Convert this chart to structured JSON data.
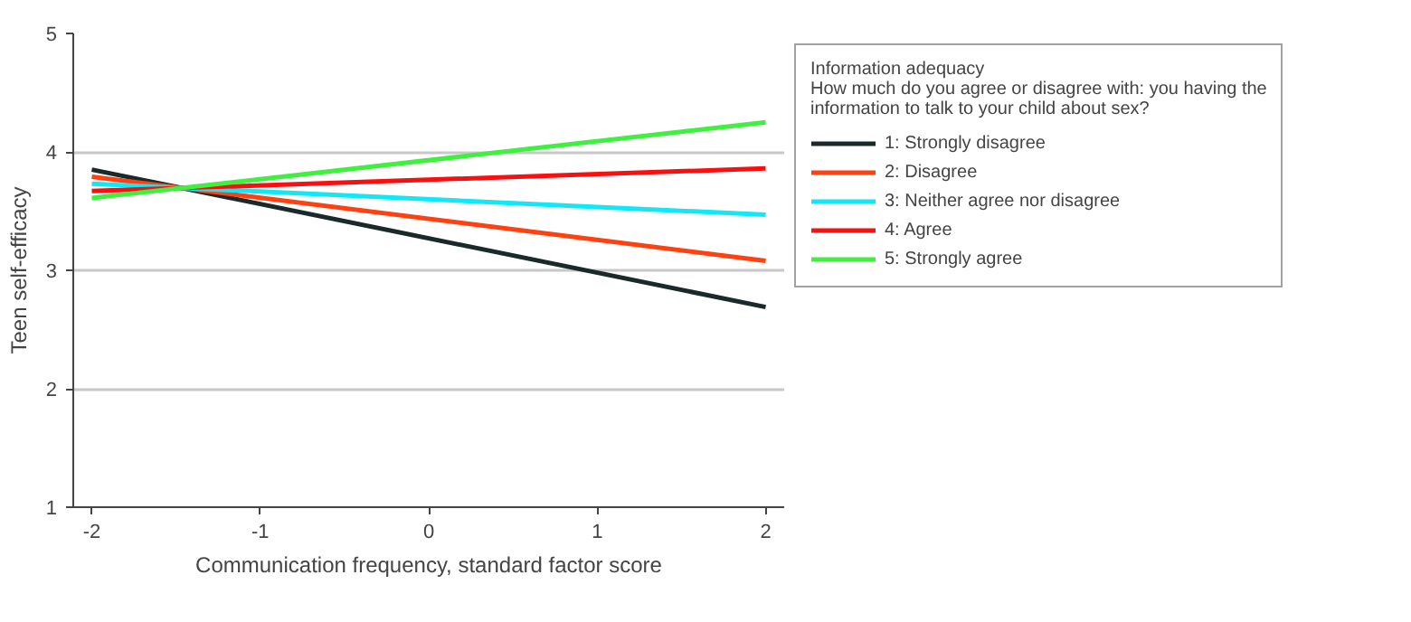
{
  "chart_data": {
    "type": "line",
    "xlabel": "Communication frequency, standard factor score",
    "ylabel": "Teen self-efficacy",
    "legend_title": "Information adequacy",
    "annotations": [
      "How much do you agree or disagree with: you having the information to talk to your child about sex?"
    ],
    "x": [
      -2,
      2
    ],
    "series": [
      {
        "name": "1: Strongly disagree",
        "color": "#1a2a2a",
        "values": [
          3.85,
          2.69
        ]
      },
      {
        "name": "2: Disagree",
        "color": "#ff4010",
        "values": [
          3.79,
          3.08
        ]
      },
      {
        "name": "3: Neither agree nor disagree",
        "color": "#10e8f8",
        "values": [
          3.73,
          3.47
        ]
      },
      {
        "name": "4: Agree",
        "color": "#f81010",
        "values": [
          3.67,
          3.86
        ]
      },
      {
        "name": "5: Strongly agree",
        "color": "#40f040",
        "values": [
          3.61,
          4.25
        ]
      }
    ],
    "xlim": [
      -2.11,
      2.11
    ],
    "ylim": [
      1,
      5
    ],
    "xticks": [
      {
        "value": -2,
        "label": "-2"
      },
      {
        "value": -1,
        "label": "-1"
      },
      0,
      1,
      2
    ],
    "yticks": [
      1,
      2,
      3,
      4,
      5
    ],
    "grid": "y",
    "legend": "right"
  }
}
